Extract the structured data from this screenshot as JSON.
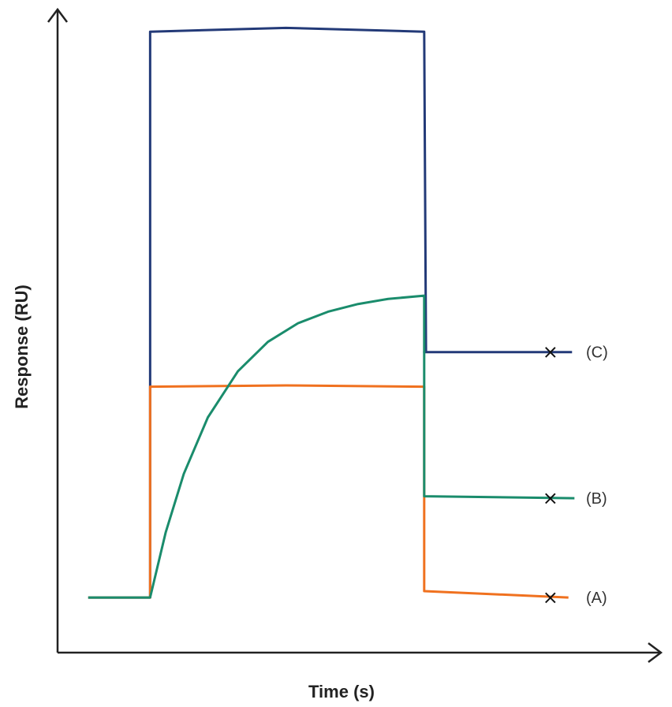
{
  "chart_data": {
    "type": "line",
    "title": "",
    "xlabel": "Time (s)",
    "ylabel": "Response (RU)",
    "xlim": [
      0,
      100
    ],
    "ylim": [
      0,
      100
    ],
    "grid": false,
    "ticks": false,
    "series": [
      {
        "name": "(C)",
        "color": "#233a78",
        "x": [
          5.1,
          15.4,
          15.4,
          38,
          61,
          61.3,
          61,
          85.6
        ],
        "y": [
          8.6,
          8.6,
          96.9,
          97.5,
          96.9,
          46.9,
          46.9,
          46.9
        ],
        "marker_x": 82
      },
      {
        "name": "(A)",
        "color": "#f0711f",
        "x": [
          5.1,
          15.4,
          15.4,
          38,
          61,
          61,
          85
        ],
        "y": [
          8.6,
          8.6,
          41.5,
          41.7,
          41.5,
          9.6,
          8.6
        ],
        "marker_x": 82
      },
      {
        "name": "(B)",
        "color": "#1a8c6c",
        "x": [
          5.1,
          15.4,
          18,
          21,
          25,
          30,
          35,
          40,
          45,
          50,
          55,
          61,
          61,
          86
        ],
        "y": [
          8.6,
          8.6,
          18.8,
          27.9,
          36.7,
          43.9,
          48.5,
          51.4,
          53.2,
          54.4,
          55.2,
          55.7,
          24.4,
          24.1
        ],
        "marker_x": 82
      }
    ]
  }
}
